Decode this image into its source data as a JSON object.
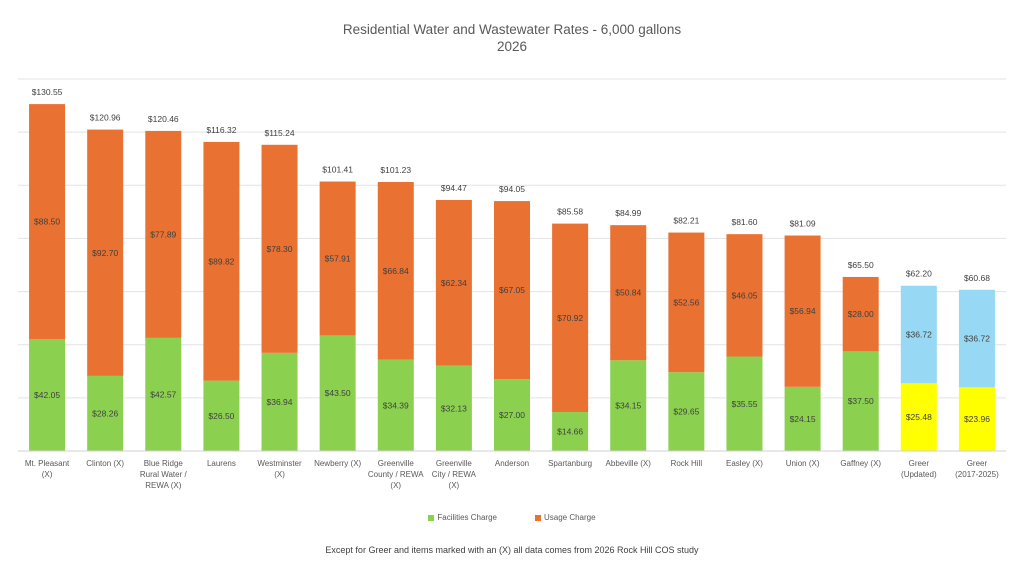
{
  "chart_data": {
    "type": "bar",
    "stacked": true,
    "title": "Residential Water and Wastewater Rates - 6,000 gallons",
    "subtitle": "2026",
    "xlabel": "",
    "ylabel": "",
    "ylim": [
      0,
      140
    ],
    "y_gridlines": true,
    "y_tick_labels_shown": false,
    "legend_position": "bottom",
    "categories": [
      "Mt. Pleasant (X)",
      "Clinton (X)",
      "Blue Ridge Rural Water / REWA (X)",
      "Laurens",
      "Westminster (X)",
      "Newberry (X)",
      "Greenville County / REWA (X)",
      "Greenville City / REWA (X)",
      "Anderson",
      "Spartanburg",
      "Abbeville (X)",
      "Rock Hill",
      "Easley (X)",
      "Union (X)",
      "Gaffney (X)",
      "Greer (Updated)",
      "Greer (2017-2025)"
    ],
    "series": [
      {
        "name": "Facilities Charge",
        "color": "#8BD14F",
        "values": [
          42.05,
          28.26,
          42.57,
          26.5,
          36.94,
          43.5,
          34.39,
          32.13,
          27.0,
          14.66,
          34.15,
          29.65,
          35.55,
          24.15,
          37.5,
          25.48,
          23.96
        ],
        "labels": [
          "$42.05",
          "$28.26",
          "$42.57",
          "$26.50",
          "$36.94",
          "$43.50",
          "$34.39",
          "$32.13",
          "$27.00",
          "$14.66",
          "$34.15",
          "$29.65",
          "$35.55",
          "$24.15",
          "$37.50",
          "$25.48",
          "$23.96"
        ]
      },
      {
        "name": "Usage Charge",
        "color": "#E97132",
        "values": [
          88.5,
          92.7,
          77.89,
          89.82,
          78.3,
          57.91,
          66.84,
          62.34,
          67.05,
          70.92,
          50.84,
          52.56,
          46.05,
          56.94,
          28.0,
          36.72,
          36.72
        ],
        "labels": [
          "$88.50",
          "$92.70",
          "$77.89",
          "$89.82",
          "$78.30",
          "$57.91",
          "$66.84",
          "$62.34",
          "$67.05",
          "$70.92",
          "$50.84",
          "$52.56",
          "$46.05",
          "$56.94",
          "$28.00",
          "$36.72",
          "$36.72"
        ]
      }
    ],
    "highlight_colors": {
      "Greer (Updated)": {
        "Facilities Charge": "#FFFF00",
        "Usage Charge": "#97D8F4"
      },
      "Greer (2017-2025)": {
        "Facilities Charge": "#FFFF00",
        "Usage Charge": "#97D8F4"
      }
    },
    "totals": [
      "$130.55",
      "$120.96",
      "$120.46",
      "$116.32",
      "$115.24",
      "$101.41",
      "$101.23",
      "$94.47",
      "$94.05",
      "$85.58",
      "$84.99",
      "$82.21",
      "$81.60",
      "$81.09",
      "$65.50",
      "$62.20",
      "$60.68"
    ],
    "footnote": "Except for Greer and items marked with an (X) all data comes from 2026 Rock Hill COS study"
  }
}
